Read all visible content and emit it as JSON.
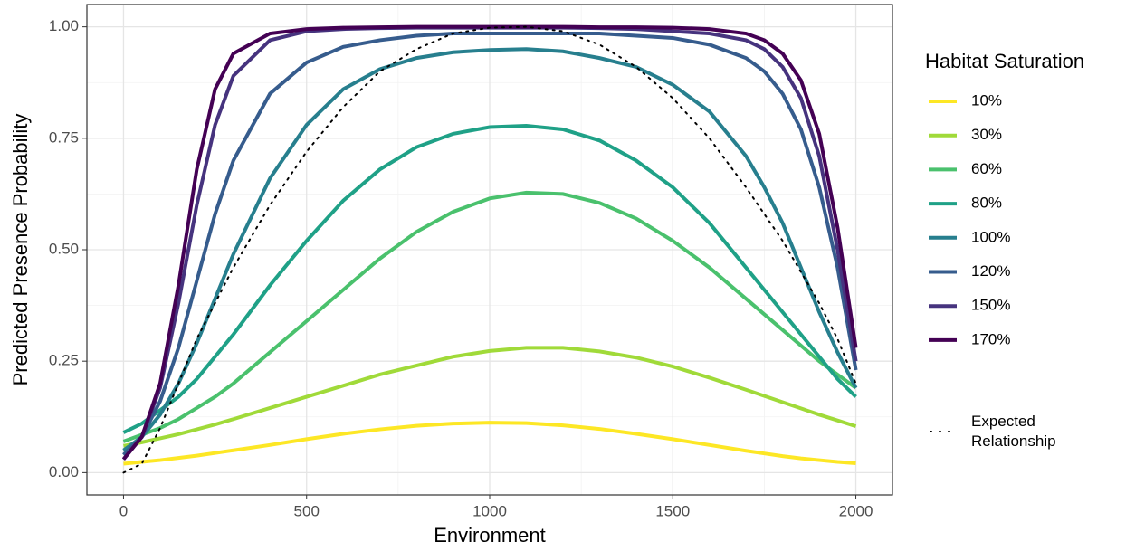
{
  "chart_data": {
    "type": "line",
    "xlabel": "Environment",
    "ylabel": "Predicted Presence Probability",
    "legend_title": "Habitat Saturation",
    "legend_position": "right",
    "xlim": [
      -100,
      2100
    ],
    "ylim": [
      -0.05,
      1.05
    ],
    "xticks": [
      0,
      500,
      1000,
      1500,
      2000
    ],
    "yticks": [
      {
        "value": 0,
        "label": "0.00"
      },
      {
        "value": 0.25,
        "label": "0.25"
      },
      {
        "value": 0.5,
        "label": "0.50"
      },
      {
        "value": 0.75,
        "label": "0.75"
      },
      {
        "value": 1,
        "label": "1.00"
      }
    ],
    "x_minor_grid": [
      250,
      750,
      1250,
      1750
    ],
    "y_minor_grid": [
      0.125,
      0.375,
      0.625,
      0.875
    ],
    "grid": true,
    "x": [
      0,
      50,
      100,
      150,
      200,
      250,
      300,
      400,
      500,
      600,
      700,
      800,
      900,
      1000,
      1100,
      1200,
      1300,
      1400,
      1500,
      1600,
      1700,
      1750,
      1800,
      1850,
      1900,
      1950,
      2000
    ],
    "series": [
      {
        "name": "10%",
        "color": "#FDE725",
        "values": [
          0.02,
          0.024,
          0.028,
          0.033,
          0.038,
          0.044,
          0.05,
          0.062,
          0.075,
          0.087,
          0.097,
          0.105,
          0.11,
          0.112,
          0.111,
          0.106,
          0.098,
          0.087,
          0.075,
          0.062,
          0.049,
          0.043,
          0.037,
          0.032,
          0.028,
          0.024,
          0.021
        ]
      },
      {
        "name": "30%",
        "color": "#A0DA39",
        "values": [
          0.06,
          0.068,
          0.077,
          0.086,
          0.097,
          0.108,
          0.12,
          0.145,
          0.17,
          0.195,
          0.22,
          0.24,
          0.26,
          0.273,
          0.28,
          0.28,
          0.272,
          0.258,
          0.238,
          0.213,
          0.186,
          0.172,
          0.158,
          0.144,
          0.13,
          0.117,
          0.104
        ]
      },
      {
        "name": "60%",
        "color": "#4AC16D",
        "values": [
          0.07,
          0.085,
          0.1,
          0.12,
          0.145,
          0.17,
          0.2,
          0.27,
          0.34,
          0.41,
          0.48,
          0.54,
          0.585,
          0.615,
          0.628,
          0.625,
          0.605,
          0.57,
          0.52,
          0.46,
          0.39,
          0.355,
          0.32,
          0.285,
          0.25,
          0.22,
          0.19
        ]
      },
      {
        "name": "80%",
        "color": "#1FA187",
        "values": [
          0.09,
          0.11,
          0.14,
          0.17,
          0.21,
          0.26,
          0.31,
          0.42,
          0.52,
          0.61,
          0.68,
          0.73,
          0.76,
          0.775,
          0.778,
          0.77,
          0.745,
          0.7,
          0.64,
          0.56,
          0.46,
          0.41,
          0.36,
          0.31,
          0.26,
          0.21,
          0.17
        ]
      },
      {
        "name": "100%",
        "color": "#277F8E",
        "values": [
          0.05,
          0.08,
          0.13,
          0.2,
          0.29,
          0.39,
          0.49,
          0.66,
          0.78,
          0.86,
          0.905,
          0.93,
          0.943,
          0.948,
          0.95,
          0.945,
          0.93,
          0.91,
          0.87,
          0.81,
          0.71,
          0.64,
          0.56,
          0.46,
          0.36,
          0.27,
          0.19
        ]
      },
      {
        "name": "120%",
        "color": "#365C8D",
        "values": [
          0.04,
          0.08,
          0.16,
          0.28,
          0.43,
          0.58,
          0.7,
          0.85,
          0.92,
          0.955,
          0.97,
          0.98,
          0.985,
          0.985,
          0.985,
          0.985,
          0.985,
          0.98,
          0.975,
          0.96,
          0.93,
          0.9,
          0.85,
          0.77,
          0.64,
          0.46,
          0.23
        ]
      },
      {
        "name": "150%",
        "color": "#46337E",
        "values": [
          0.03,
          0.08,
          0.19,
          0.38,
          0.6,
          0.78,
          0.89,
          0.97,
          0.99,
          0.995,
          0.997,
          0.998,
          0.998,
          0.998,
          0.998,
          0.998,
          0.997,
          0.995,
          0.99,
          0.985,
          0.97,
          0.95,
          0.91,
          0.84,
          0.71,
          0.5,
          0.25
        ]
      },
      {
        "name": "170%",
        "color": "#440154",
        "values": [
          0.03,
          0.08,
          0.2,
          0.42,
          0.68,
          0.86,
          0.94,
          0.985,
          0.995,
          0.998,
          0.999,
          1.0,
          1.0,
          1.0,
          1.0,
          1.0,
          0.999,
          0.999,
          0.998,
          0.995,
          0.985,
          0.97,
          0.94,
          0.88,
          0.76,
          0.55,
          0.28
        ]
      }
    ],
    "reference": {
      "name": "Expected Relationship",
      "color": "#000000",
      "linestyle": "dotted",
      "values": [
        0,
        0.02,
        0.1,
        0.2,
        0.3,
        0.38,
        0.46,
        0.6,
        0.72,
        0.82,
        0.9,
        0.95,
        0.985,
        0.998,
        1.0,
        0.99,
        0.96,
        0.91,
        0.84,
        0.75,
        0.64,
        0.58,
        0.52,
        0.45,
        0.38,
        0.3,
        0.2
      ]
    }
  }
}
